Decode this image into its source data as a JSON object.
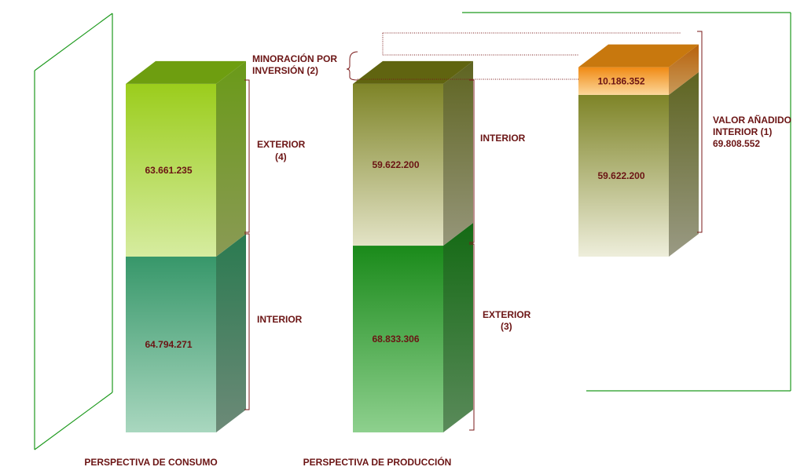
{
  "chart_data": {
    "type": "bar",
    "stacked": true,
    "style": "3d-columns",
    "categories": [
      "PERSPECTIVA DE CONSUMO",
      "PERSPECTIVA DE PRODUCCIÓN",
      ""
    ],
    "columns": [
      {
        "category": "PERSPECTIVA DE CONSUMO",
        "segments": [
          {
            "label": "INTERIOR",
            "value": 64794271,
            "value_text": "64.794.271",
            "color": "#3a9a6a"
          },
          {
            "label": "EXTERIOR (4)",
            "value": 63661235,
            "value_text": "63.661.235",
            "color": "#9dcd1e"
          }
        ]
      },
      {
        "category": "PERSPECTIVA DE PRODUCCIÓN",
        "segments": [
          {
            "label": "EXTERIOR (3)",
            "value": 68833306,
            "value_text": "68.833.306",
            "color": "#1e8c1e"
          },
          {
            "label": "INTERIOR",
            "value": 59622200,
            "value_text": "59.622.200",
            "color": "#7e8428"
          }
        ]
      },
      {
        "category": "",
        "segments": [
          {
            "label": "",
            "value": 59622200,
            "value_text": "59.622.200",
            "color": "#7e8428"
          },
          {
            "label": "",
            "value": 10186352,
            "value_text": "10.186.352",
            "color": "#e07a10"
          }
        ]
      }
    ],
    "annotations": {
      "minoracion": "MINORACIÓN POR INVERSIÓN (2)",
      "valor_anadido_line1": "VALOR AÑADIDO",
      "valor_anadido_line2": "INTERIOR (1)",
      "valor_anadido_total": "69.808.552"
    },
    "colors": {
      "label_text": "#6b1414",
      "frame": "#1e9a1e",
      "bracket": "#7a1a1a"
    },
    "grid": false,
    "legend": "none"
  }
}
